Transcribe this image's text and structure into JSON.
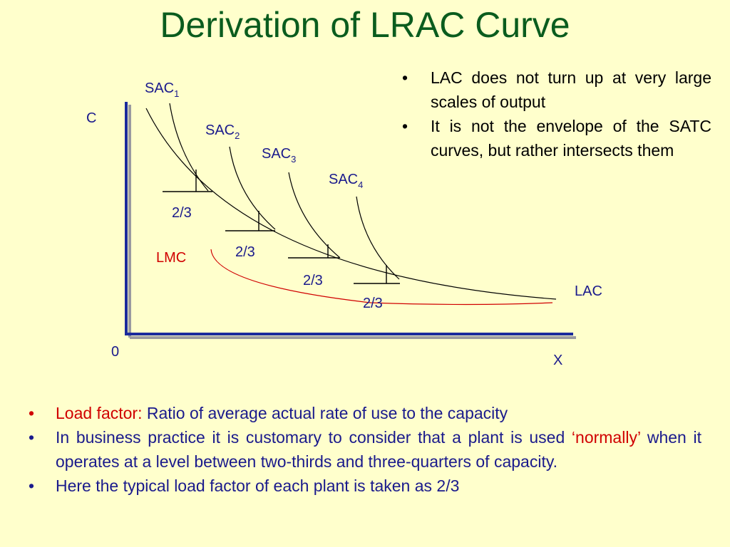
{
  "title": "Derivation of LRAC Curve",
  "bullet_symbol": "•",
  "right_bullets": [
    "LAC does not turn up at very large scales of output",
    "It is not the envelope of the SATC curves, but rather intersects them"
  ],
  "bottom_bullets": {
    "b1_term": "Load factor:",
    "b1_text": " Ratio of average actual rate of use to the capacity",
    "b2_pre": "In business practice it is customary to consider that a plant is used ",
    "b2_red": "‘normally’",
    "b2_post": " when it operates at a level between two-thirds and three-quarters of capacity.",
    "b3": "Here the typical load factor of each plant is taken as  2/3"
  },
  "diagram": {
    "y_axis_label": "C",
    "x_axis_label": "X",
    "origin_label": "0",
    "sac_base": "SAC",
    "sac_subscripts": [
      "1",
      "2",
      "3",
      "4"
    ],
    "lac_label": "LAC",
    "lmc_label": "LMC",
    "load_labels": [
      "2/3",
      "2/3",
      "2/3",
      "2/3"
    ]
  },
  "colors": {
    "title": "#0a5c1e",
    "background": "#ffffcc",
    "axis": "#1a2a9c",
    "curve_label": "#1a1a8c",
    "lmc": "#d00000",
    "curves": "#000000"
  }
}
